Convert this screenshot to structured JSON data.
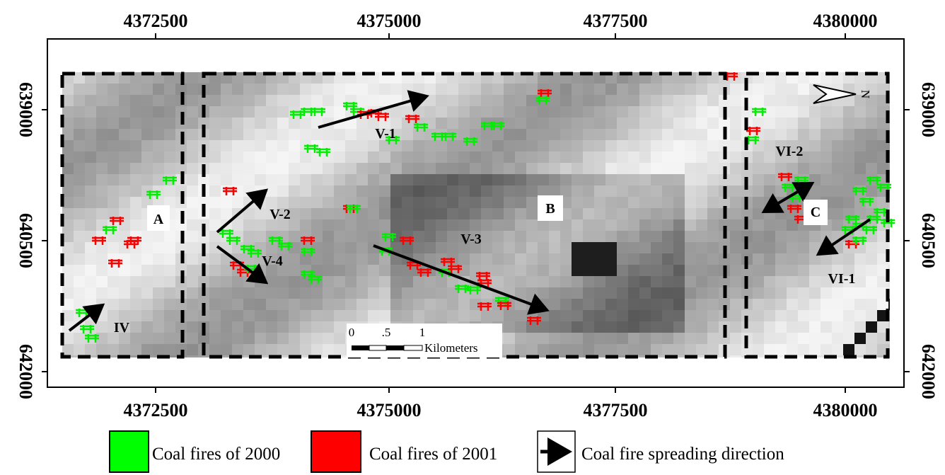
{
  "axes": {
    "top": [
      "4372500",
      "4375000",
      "4377500",
      "4380000"
    ],
    "bottom": [
      "4372500",
      "4375000",
      "4377500",
      "4380000"
    ],
    "left": [
      "639000",
      "640500",
      "642000"
    ],
    "right": [
      "639000",
      "640500",
      "642000"
    ]
  },
  "regions": [
    "A",
    "B",
    "C"
  ],
  "zones": [
    "V-1",
    "V-2",
    "V-3",
    "V-4",
    "VI-1",
    "VI-2",
    "IV"
  ],
  "scale_bar": {
    "ticks": [
      "0",
      ".5",
      "1"
    ],
    "unit": "Kilometers"
  },
  "north": "N",
  "legend": [
    "Coal fires of 2000",
    "Coal fires of 2001",
    "Coal fire spreading direction"
  ]
}
